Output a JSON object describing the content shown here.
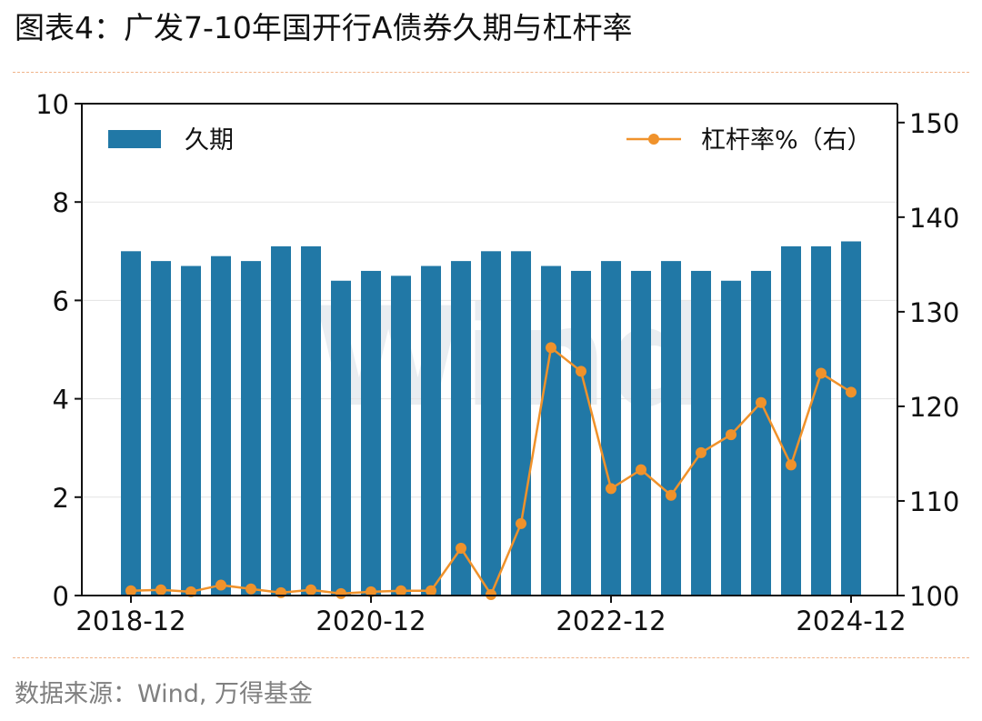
{
  "title": "图表4：广发7-10年国开行A债券久期与杠杆率",
  "source": "数据来源：Wind, 万得基金",
  "watermark": "Wind",
  "colors": {
    "bar": "#2178a6",
    "line": "#f0922b",
    "grid": "#e3e3e3",
    "rule": "#f0b48a"
  },
  "chart_data": {
    "type": "bar",
    "x": [
      "2018-12",
      "2019-03",
      "2019-06",
      "2019-09",
      "2019-12",
      "2020-03",
      "2020-06",
      "2020-09",
      "2020-12",
      "2021-03",
      "2021-06",
      "2021-09",
      "2021-12",
      "2022-03",
      "2022-06",
      "2022-09",
      "2022-12",
      "2023-03",
      "2023-06",
      "2023-09",
      "2023-12",
      "2024-03",
      "2024-06",
      "2024-09",
      "2024-12"
    ],
    "xticks": [
      "2018-12",
      "2020-12",
      "2022-12",
      "2024-12"
    ],
    "series": [
      {
        "name": "久期",
        "type": "bar",
        "axis": "left",
        "values": [
          7.0,
          6.8,
          6.7,
          6.9,
          6.8,
          7.1,
          7.1,
          6.4,
          6.6,
          6.5,
          6.7,
          6.8,
          7.0,
          7.0,
          6.7,
          6.6,
          6.8,
          6.6,
          6.8,
          6.6,
          6.4,
          6.6,
          7.1,
          7.1,
          7.2
        ]
      },
      {
        "name": "杠杆率%（右）",
        "type": "line",
        "axis": "right",
        "values": [
          100.5,
          100.6,
          100.4,
          101.1,
          100.7,
          100.3,
          100.6,
          100.2,
          100.4,
          100.5,
          100.5,
          105.0,
          100.1,
          107.6,
          126.2,
          123.7,
          111.3,
          113.3,
          110.6,
          115.1,
          117.0,
          120.4,
          113.8,
          123.5,
          121.5
        ]
      }
    ],
    "yleft": {
      "ylim": [
        0,
        10
      ],
      "ticks": [
        0,
        2,
        4,
        6,
        8,
        10
      ]
    },
    "yright": {
      "ylim": [
        100,
        152
      ],
      "ticks": [
        100,
        110,
        120,
        130,
        140,
        150
      ]
    },
    "grid": true,
    "legend": [
      "top-left",
      "top-right"
    ]
  }
}
